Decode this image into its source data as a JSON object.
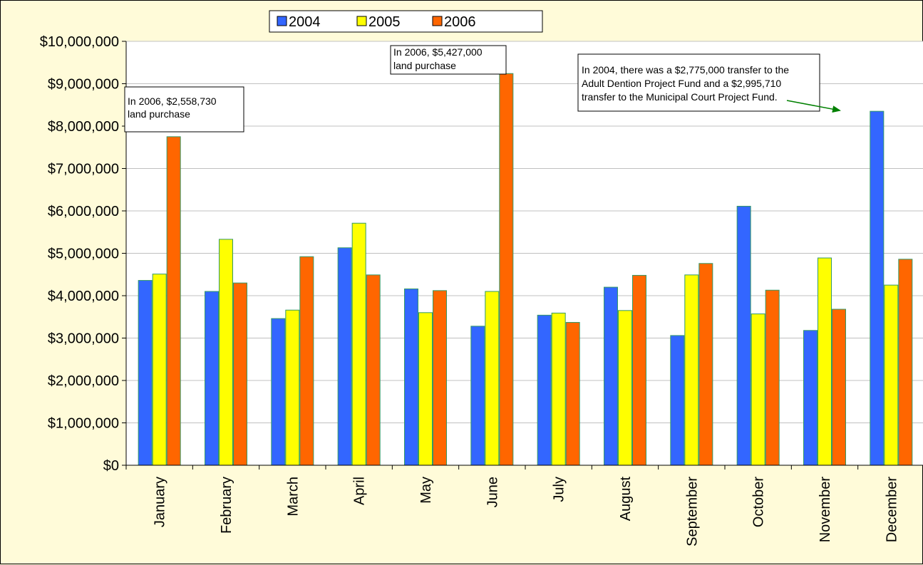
{
  "chart_data": {
    "type": "bar",
    "title": "",
    "xlabel": "",
    "ylabel": "",
    "categories": [
      "January",
      "February",
      "March",
      "April",
      "May",
      "June",
      "July",
      "August",
      "September",
      "October",
      "November",
      "December"
    ],
    "series": [
      {
        "name": "2004",
        "color": "#3366ff",
        "values": [
          4360000,
          4100000,
          3460000,
          5130000,
          4160000,
          3280000,
          3540000,
          4200000,
          3060000,
          6110000,
          3180000,
          8350000
        ]
      },
      {
        "name": "2005",
        "color": "#ffff00",
        "values": [
          4510000,
          5330000,
          3660000,
          5710000,
          3600000,
          4100000,
          3590000,
          3650000,
          4490000,
          3570000,
          4890000,
          4250000
        ]
      },
      {
        "name": "2006",
        "color": "#ff6600",
        "values": [
          7750000,
          4300000,
          4920000,
          4490000,
          4120000,
          9240000,
          3370000,
          4480000,
          4760000,
          4130000,
          3680000,
          4860000
        ]
      }
    ],
    "ylim": [
      0,
      10000000
    ],
    "y_ticks": [
      "$0",
      "$1,000,000",
      "$2,000,000",
      "$3,000,000",
      "$4,000,000",
      "$5,000,000",
      "$6,000,000",
      "$7,000,000",
      "$8,000,000",
      "$9,000,000",
      "$10,000,000"
    ],
    "grid": true,
    "legend_position": "top-center",
    "annotations": [
      {
        "lines": [
          "In 2006, $2,558,730",
          "land purchase"
        ]
      },
      {
        "lines": [
          "In 2006, $5,427,000",
          "land purchase"
        ]
      },
      {
        "lines": [
          "In 2004, there was a $2,775,000 transfer to the",
          "Adult Dention Project Fund and a $2,995,710",
          "transfer to the Municipal Court Project Fund."
        ]
      }
    ],
    "colors": {
      "background": "#fffbd9",
      "plot_area": "#ffffff",
      "arrow": "#008000",
      "bar_outline": "#339966"
    }
  }
}
